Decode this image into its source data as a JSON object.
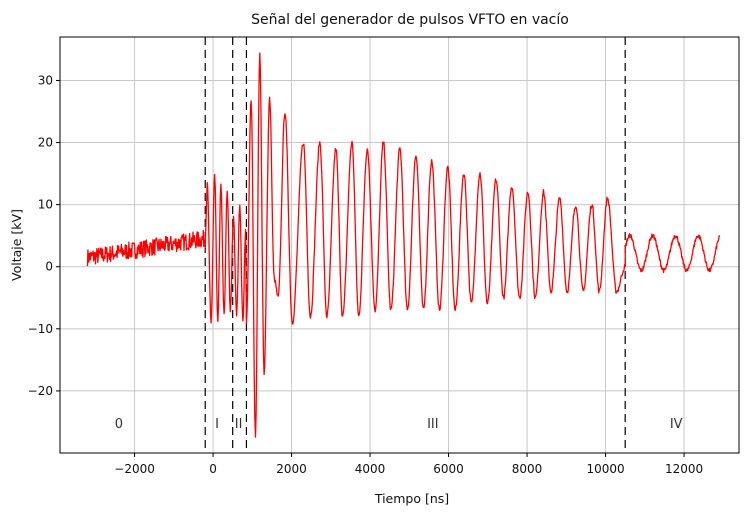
{
  "chart_data": {
    "type": "line",
    "title": "Señal del generador de pulsos VFTO en vacío",
    "xlabel": "Tiempo [ns]",
    "ylabel": "Voltaje [kV]",
    "xlim": [
      -3900,
      13400
    ],
    "ylim": [
      -30,
      37
    ],
    "xticks": [
      -2000,
      0,
      2000,
      4000,
      6000,
      8000,
      10000,
      12000
    ],
    "yticks": [
      -20,
      -10,
      0,
      10,
      20,
      30
    ],
    "grid": true,
    "line_color": "#ff0000",
    "divider_color": "#000000",
    "vertical_dividers": [
      -200,
      500,
      850,
      10500
    ],
    "regions": [
      {
        "label": "0",
        "x": -2400
      },
      {
        "label": "I",
        "x": 100
      },
      {
        "label": "II",
        "x": 650
      },
      {
        "label": "III",
        "x": 5600
      },
      {
        "label": "IV",
        "x": 11800
      }
    ],
    "series": [
      {
        "segments": [
          {
            "start": -3200,
            "end": -200,
            "kind": "noise",
            "base_start": 1.5,
            "base_end": 4.5,
            "noise_amp": 1.4
          },
          {
            "start": -200,
            "end": 850,
            "kind": "burst",
            "peaks": [
              [
                -150,
                14
              ],
              [
                -50,
                -9
              ],
              [
                40,
                15
              ],
              [
                120,
                -9
              ],
              [
                200,
                13
              ],
              [
                280,
                -8
              ],
              [
                360,
                12
              ],
              [
                440,
                -7
              ],
              [
                520,
                8
              ],
              [
                600,
                -8
              ],
              [
                680,
                10
              ],
              [
                760,
                -9
              ],
              [
                830,
                6
              ]
            ]
          },
          {
            "start": 850,
            "end": 10500,
            "kind": "peaks",
            "peaks": [
              [
                850,
                -9
              ],
              [
                970,
                27
              ],
              [
                1080,
                -27
              ],
              [
                1190,
                34
              ],
              [
                1300,
                -17
              ],
              [
                1440,
                27
              ],
              [
                1560,
                -2
              ],
              [
                1660,
                -5
              ],
              [
                1830,
                25
              ],
              [
                2020,
                -9
              ],
              [
                2300,
                20
              ],
              [
                2480,
                -8
              ],
              [
                2720,
                20
              ],
              [
                2900,
                -8
              ],
              [
                3130,
                19
              ],
              [
                3300,
                -8
              ],
              [
                3540,
                20
              ],
              [
                3710,
                -8
              ],
              [
                3930,
                19
              ],
              [
                4130,
                -7
              ],
              [
                4340,
                20
              ],
              [
                4530,
                -7
              ],
              [
                4760,
                19
              ],
              [
                4950,
                -7
              ],
              [
                5170,
                18
              ],
              [
                5360,
                -7
              ],
              [
                5570,
                17
              ],
              [
                5770,
                -7
              ],
              [
                5980,
                16
              ],
              [
                6170,
                -7
              ],
              [
                6390,
                15
              ],
              [
                6580,
                -6
              ],
              [
                6800,
                15
              ],
              [
                6990,
                -6
              ],
              [
                7210,
                14
              ],
              [
                7400,
                -5
              ],
              [
                7610,
                13
              ],
              [
                7810,
                -5
              ],
              [
                8020,
                12
              ],
              [
                8210,
                -5
              ],
              [
                8420,
                12
              ],
              [
                8610,
                -4
              ],
              [
                8830,
                11
              ],
              [
                9020,
                -4
              ],
              [
                9240,
                10
              ],
              [
                9430,
                -4
              ],
              [
                9650,
                10
              ],
              [
                9840,
                -4
              ],
              [
                10050,
                11
              ],
              [
                10280,
                -4
              ],
              [
                10500,
                0
              ]
            ]
          },
          {
            "start": 10500,
            "end": 12900,
            "kind": "sine",
            "amplitude": 2.8,
            "offset": 2.2,
            "period": 580,
            "phase": 10620
          }
        ]
      }
    ]
  }
}
